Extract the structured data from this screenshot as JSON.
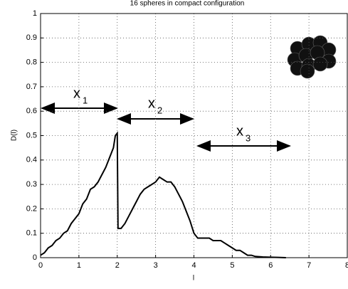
{
  "chart_data": {
    "type": "line",
    "title": "16 spheres in compact configuration",
    "xlabel": "l",
    "ylabel": "D(l)",
    "x": [
      0,
      0.1,
      0.2,
      0.3,
      0.4,
      0.5,
      0.6,
      0.7,
      0.8,
      0.9,
      1.0,
      1.1,
      1.2,
      1.3,
      1.4,
      1.5,
      1.6,
      1.7,
      1.8,
      1.9,
      1.95,
      2.0,
      2.02,
      2.1,
      2.2,
      2.3,
      2.4,
      2.5,
      2.6,
      2.7,
      2.8,
      2.9,
      3.0,
      3.1,
      3.2,
      3.3,
      3.4,
      3.5,
      3.6,
      3.7,
      3.8,
      3.9,
      4.0,
      4.1,
      4.2,
      4.3,
      4.4,
      4.5,
      4.6,
      4.7,
      4.8,
      4.9,
      5.0,
      5.1,
      5.2,
      5.3,
      5.4,
      5.5,
      5.6,
      5.8,
      6.0,
      6.2,
      6.4
    ],
    "values": [
      0.01,
      0.02,
      0.04,
      0.05,
      0.07,
      0.08,
      0.1,
      0.11,
      0.14,
      0.16,
      0.18,
      0.22,
      0.24,
      0.28,
      0.29,
      0.31,
      0.34,
      0.37,
      0.41,
      0.45,
      0.5,
      0.51,
      0.12,
      0.12,
      0.14,
      0.17,
      0.2,
      0.23,
      0.26,
      0.28,
      0.29,
      0.3,
      0.31,
      0.33,
      0.32,
      0.31,
      0.31,
      0.29,
      0.26,
      0.23,
      0.19,
      0.15,
      0.1,
      0.08,
      0.08,
      0.08,
      0.08,
      0.07,
      0.07,
      0.07,
      0.06,
      0.05,
      0.04,
      0.03,
      0.03,
      0.02,
      0.01,
      0.01,
      0.005,
      0.003,
      0.002,
      0.001,
      0
    ],
    "color": "#000000",
    "xlim": [
      0,
      8
    ],
    "ylim": [
      0,
      1
    ],
    "xticks": [
      0,
      1,
      2,
      3,
      4,
      5,
      6,
      7,
      8
    ],
    "yticks": [
      0,
      0.1,
      0.2,
      0.3,
      0.4,
      0.5,
      0.6,
      0.7,
      0.8,
      0.9,
      1
    ],
    "grid": true,
    "annotations": [
      {
        "text": "x",
        "sub": "1"
      },
      {
        "text": "x",
        "sub": "2"
      },
      {
        "text": "x",
        "sub": "3"
      }
    ]
  }
}
